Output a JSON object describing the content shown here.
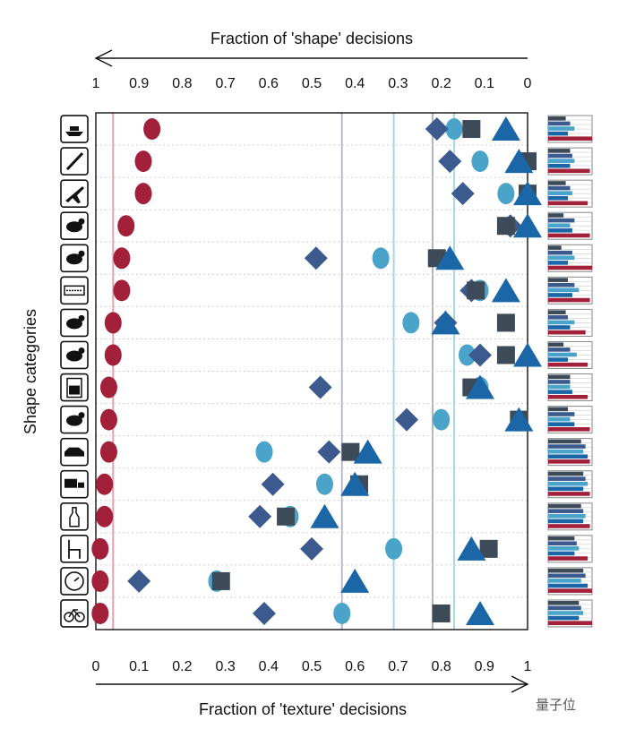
{
  "chart_data": {
    "type": "scatter",
    "title": "",
    "xlabel_top": "Fraction of 'shape' decisions",
    "xlabel_bottom": "Fraction of 'texture' decisions",
    "ylabel": "Shape categories",
    "xlim": [
      0,
      1
    ],
    "top_ticks": [
      "1",
      "0.9",
      "0.8",
      "0.7",
      "0.6",
      "0.5",
      "0.4",
      "0.3",
      "0.2",
      "0.1",
      "0"
    ],
    "bottom_ticks": [
      "0",
      "0.1",
      "0.2",
      "0.3",
      "0.4",
      "0.5",
      "0.6",
      "0.7",
      "0.8",
      "0.9",
      "1"
    ],
    "categories": [
      "boat",
      "knife",
      "airplane",
      "bear",
      "dog",
      "keyboard",
      "cat",
      "elephant",
      "oven",
      "bird",
      "car",
      "truck",
      "bottle",
      "chair",
      "clock",
      "bicycle"
    ],
    "series": [
      {
        "marker": "ellipse",
        "color": "#a3203a",
        "values": [
          0.13,
          0.11,
          0.11,
          0.07,
          0.06,
          0.06,
          0.04,
          0.04,
          0.03,
          0.03,
          0.03,
          0.02,
          0.02,
          0.01,
          0.01,
          0.01
        ]
      },
      {
        "marker": "circle",
        "color": "#4aa3c9",
        "values": [
          0.83,
          0.89,
          0.95,
          null,
          0.66,
          0.89,
          0.73,
          0.86,
          0.89,
          0.8,
          0.39,
          0.53,
          0.45,
          0.69,
          0.28,
          0.57
        ]
      },
      {
        "marker": "diamond",
        "color": "#3d5a8f",
        "values": [
          0.79,
          0.82,
          0.85,
          0.96,
          0.51,
          0.87,
          0.81,
          0.89,
          0.52,
          0.72,
          0.54,
          0.41,
          0.38,
          0.5,
          0.1,
          0.39
        ]
      },
      {
        "marker": "square",
        "color": "#3d4a57",
        "values": [
          0.87,
          1.0,
          1.0,
          0.95,
          0.79,
          0.88,
          0.95,
          0.95,
          0.87,
          0.98,
          0.59,
          0.61,
          0.44,
          0.91,
          0.29,
          0.8
        ]
      },
      {
        "marker": "triangle",
        "color": "#1a66a6",
        "values": [
          0.95,
          0.98,
          1.0,
          1.0,
          0.82,
          0.95,
          0.81,
          1.0,
          0.89,
          0.98,
          0.63,
          0.6,
          0.53,
          0.87,
          0.6,
          0.89
        ]
      }
    ],
    "vlines": [
      {
        "x": 0.04,
        "color": "#e0a3b0"
      },
      {
        "x": 0.57,
        "color": "#b5b9cc"
      },
      {
        "x": 0.69,
        "color": "#a8d5e2"
      },
      {
        "x": 0.78,
        "color": "#b0b3b8"
      },
      {
        "x": 0.83,
        "color": "#a8d5e2"
      }
    ],
    "mini_bar_colors": [
      "#3d4a57",
      "#3d5a8f",
      "#4aa3c9",
      "#1a66a6",
      "#a3203a"
    ],
    "mini_bars": [
      [
        0.4,
        0.5,
        0.6,
        0.45,
        1.0
      ],
      [
        0.5,
        0.55,
        0.6,
        0.5,
        0.95
      ],
      [
        0.4,
        0.5,
        0.55,
        0.45,
        0.9
      ],
      [
        0.35,
        0.6,
        0.5,
        0.55,
        0.95
      ],
      [
        0.3,
        0.55,
        0.6,
        0.45,
        1.0
      ],
      [
        0.45,
        0.6,
        0.7,
        0.55,
        0.95
      ],
      [
        0.4,
        0.45,
        0.6,
        0.5,
        0.85
      ],
      [
        0.35,
        0.5,
        0.65,
        0.45,
        0.9
      ],
      [
        0.5,
        0.5,
        0.5,
        0.55,
        0.9
      ],
      [
        0.45,
        0.6,
        0.5,
        0.6,
        0.95
      ],
      [
        0.75,
        0.85,
        0.8,
        0.9,
        0.95
      ],
      [
        0.8,
        0.85,
        0.9,
        0.8,
        0.95
      ],
      [
        0.75,
        0.8,
        0.85,
        0.8,
        0.95
      ],
      [
        0.6,
        0.65,
        0.7,
        0.6,
        0.9
      ],
      [
        0.8,
        0.85,
        0.75,
        0.9,
        1.0
      ],
      [
        0.7,
        0.75,
        0.8,
        0.7,
        1.0
      ]
    ]
  },
  "watermark": "量子位"
}
